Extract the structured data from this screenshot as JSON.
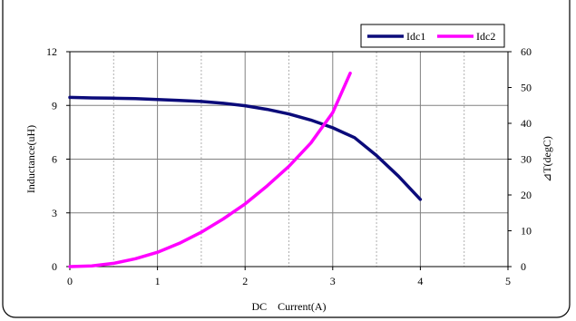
{
  "chart_data": {
    "type": "line",
    "xlabel": "DC　Current(A)",
    "ylabel": "Inductance(uH)",
    "y2label": "⊿T(degC)",
    "xlim": [
      0,
      5
    ],
    "ylim": [
      0,
      12
    ],
    "y2lim": [
      0,
      60
    ],
    "xticks": [
      "0",
      "1",
      "2",
      "3",
      "4",
      "5"
    ],
    "yticks": [
      "0",
      "3",
      "6",
      "9",
      "12"
    ],
    "y2ticks": [
      "0",
      "10",
      "20",
      "30",
      "40",
      "50",
      "60"
    ],
    "grid": true,
    "legend_position": "top-right",
    "series": [
      {
        "name": "Idc1",
        "axis": "left",
        "color": "#0b0b7a",
        "x": [
          0,
          0.25,
          0.5,
          0.75,
          1.0,
          1.25,
          1.5,
          1.75,
          2.0,
          2.25,
          2.5,
          2.75,
          3.0,
          3.25,
          3.5,
          3.75,
          4.0
        ],
        "y": [
          9.45,
          9.42,
          9.4,
          9.38,
          9.33,
          9.28,
          9.22,
          9.12,
          8.98,
          8.78,
          8.52,
          8.18,
          7.75,
          7.2,
          6.2,
          5.05,
          3.75
        ]
      },
      {
        "name": "Idc2",
        "axis": "right",
        "color": "#ff00ff",
        "x": [
          0,
          0.25,
          0.5,
          0.75,
          1.0,
          1.25,
          1.5,
          1.75,
          2.0,
          2.25,
          2.5,
          2.75,
          3.0,
          3.2
        ],
        "y": [
          0,
          0.2,
          0.9,
          2.2,
          4.0,
          6.5,
          9.6,
          13.3,
          17.5,
          22.5,
          28.0,
          34.5,
          43.0,
          54.0
        ]
      }
    ]
  }
}
